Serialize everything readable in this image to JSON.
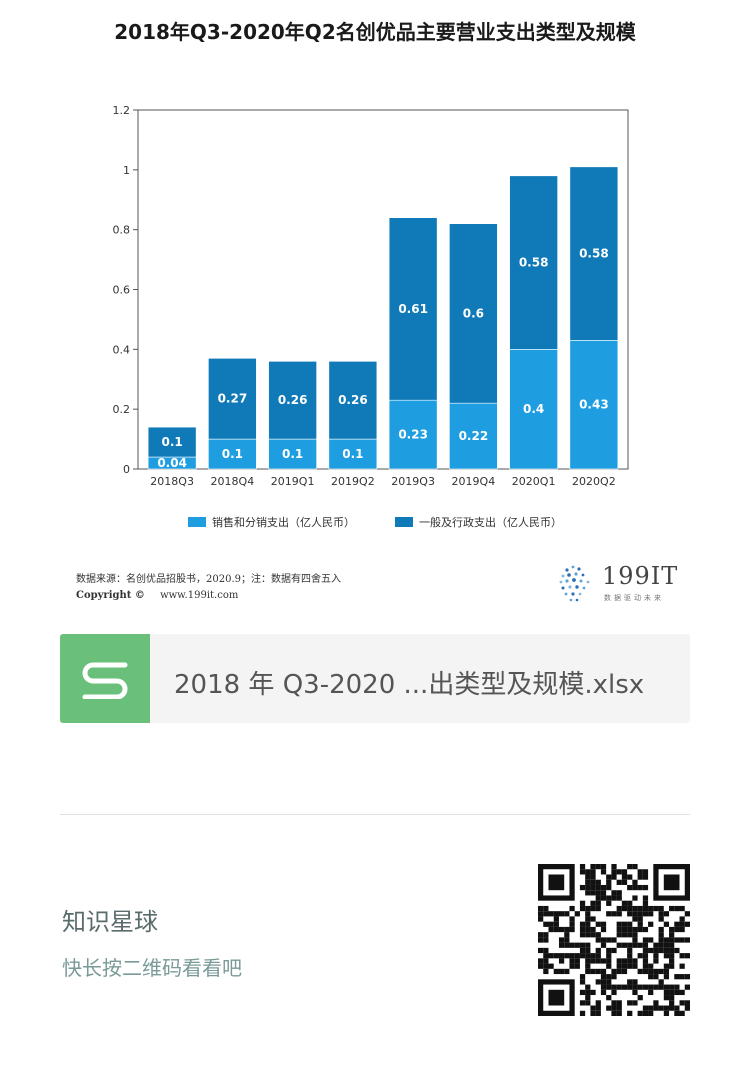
{
  "title": "2018年Q3-2020年Q2名创优品主要营业支出类型及规模",
  "chart_data": {
    "type": "bar",
    "stacked": true,
    "categories": [
      "2018Q3",
      "2018Q4",
      "2019Q1",
      "2019Q2",
      "2019Q3",
      "2019Q4",
      "2020Q1",
      "2020Q2"
    ],
    "series": [
      {
        "name": "销售和分销支出（亿人民币）",
        "color": "#1e9ee0",
        "values": [
          0.04,
          0.1,
          0.1,
          0.1,
          0.23,
          0.22,
          0.4,
          0.43
        ]
      },
      {
        "name": "一般及行政支出（亿人民币）",
        "color": "#1079b8",
        "values": [
          0.1,
          0.27,
          0.26,
          0.26,
          0.61,
          0.6,
          0.58,
          0.58
        ]
      }
    ],
    "ylim": [
      0,
      1.2
    ],
    "yticks": [
      "0",
      "0.2",
      "0.4",
      "0.6",
      "0.8",
      "1",
      "1.2"
    ],
    "legend_position": "bottom",
    "grid": false
  },
  "footer_note": {
    "source": "数据来源：名创优品招股书，2020.9；注：数据有四舍五入",
    "copyright_label": "Copyright ©",
    "website": "www.199it.com"
  },
  "brand": {
    "name": "199IT",
    "tagline": "数据驱动未来"
  },
  "file_card": {
    "icon_letter": "S",
    "file_name": "2018 年 Q3-2020 ...出类型及规模.xlsx",
    "icon_color": "#6ac07a"
  },
  "footer": {
    "title": "知识星球",
    "subtitle": "快长按二维码看看吧"
  }
}
